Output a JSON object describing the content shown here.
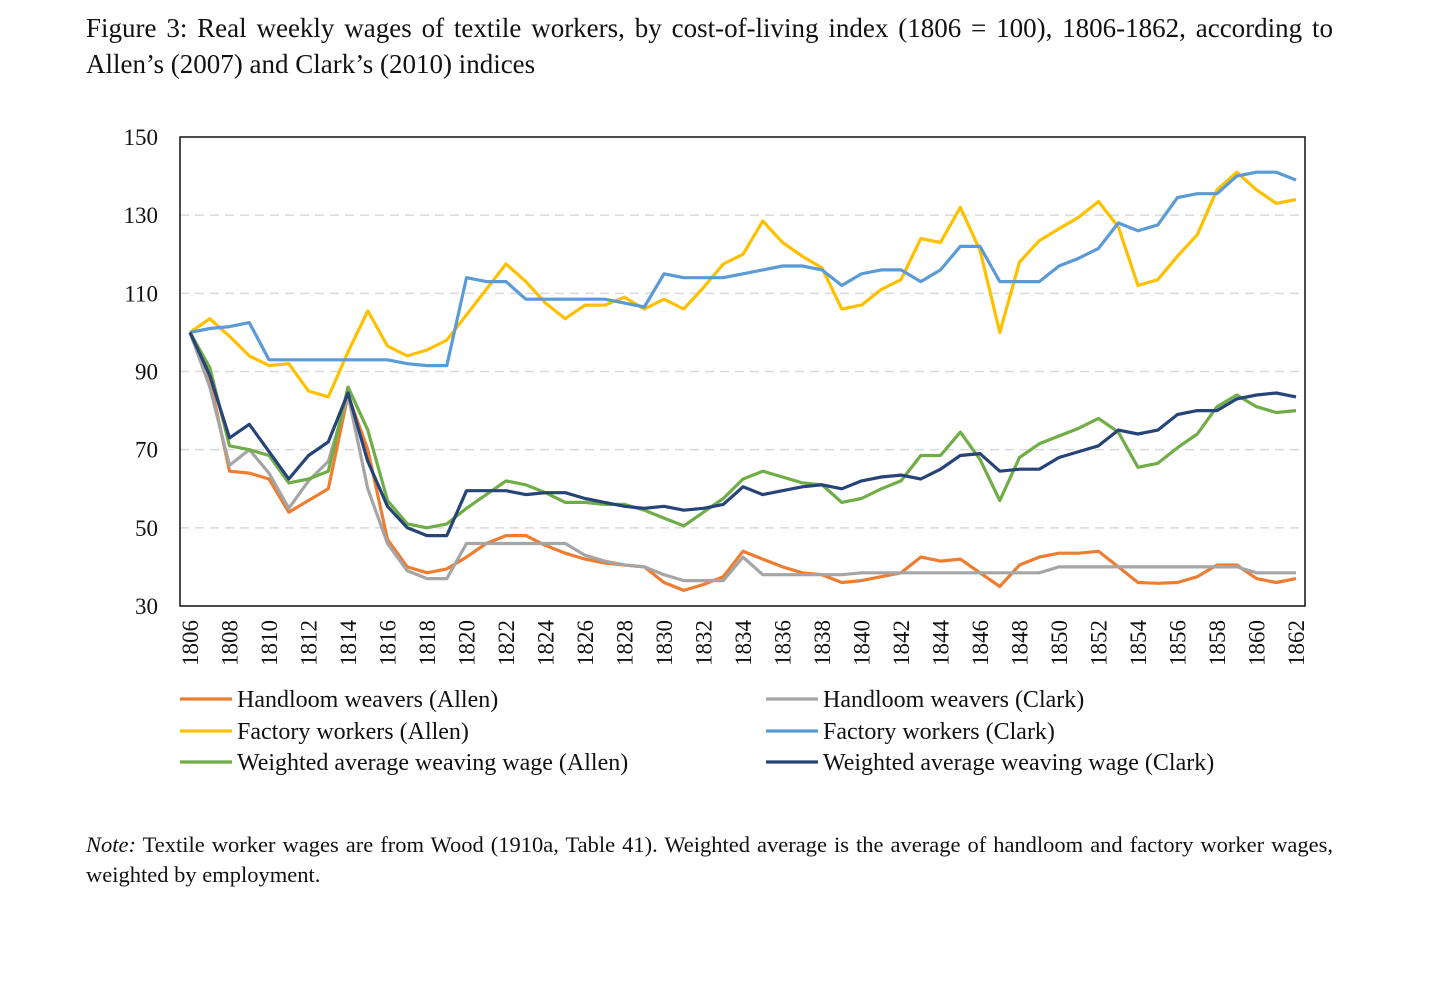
{
  "title": "Figure 3: Real weekly wages of textile workers, by cost-of-living index (1806 = 100), 1806-1862, according to Allen’s (2007) and Clark’s (2010) indices",
  "note": {
    "label": "Note:",
    "text": "Textile worker wages are from Wood (1910a, Table 41). Weighted average is the average of handloom and factory worker wages, weighted by employment."
  },
  "chart_data": {
    "type": "line",
    "title": "Figure 3: Real weekly wages of textile workers, by cost-of-living index (1806 = 100), 1806-1862, according to Allen’s (2007) and Clark’s (2010) indices",
    "xlabel": "",
    "ylabel": "",
    "xlim": [
      1806,
      1862
    ],
    "ylim": [
      30,
      150
    ],
    "yticks": [
      150,
      130,
      110,
      90,
      70,
      50,
      30
    ],
    "xticks": [
      1806,
      1808,
      1810,
      1812,
      1814,
      1816,
      1818,
      1820,
      1822,
      1824,
      1826,
      1828,
      1830,
      1832,
      1834,
      1836,
      1838,
      1840,
      1842,
      1844,
      1846,
      1848,
      1850,
      1852,
      1854,
      1856,
      1858,
      1860,
      1862
    ],
    "grid": "horizontal dashed",
    "legend_placement": "bottom",
    "x_start": 1806,
    "series": [
      {
        "name": "Handloom weavers (Allen)",
        "color": "#ED7D31",
        "values": [
          100,
          88,
          64.5,
          64,
          62.5,
          54,
          57,
          60,
          84,
          70,
          47,
          40,
          38.5,
          39.5,
          42.5,
          46,
          48,
          48,
          45.5,
          43.5,
          42,
          41,
          40.5,
          40,
          36,
          34,
          35.5,
          37.5,
          44,
          42,
          40,
          38.5,
          38,
          36,
          36.5,
          37.5,
          38.5,
          42.5,
          41.5,
          42,
          38.5,
          35,
          40.5,
          42.5,
          43.5,
          43.5,
          44,
          40,
          36,
          35.8,
          36,
          37.5,
          40.5,
          40.5,
          37,
          36,
          37
        ]
      },
      {
        "name": "Handloom weavers (Clark)",
        "color": "#A5A5A5",
        "values": [
          100,
          86,
          66,
          70,
          64,
          55,
          62,
          67,
          84,
          60,
          46,
          39,
          37,
          37,
          46,
          46,
          46,
          46,
          46,
          46,
          43,
          41.5,
          40.5,
          40,
          38,
          36.5,
          36.5,
          36.5,
          42.5,
          38,
          38,
          38,
          38,
          38,
          38.5,
          38.5,
          38.5,
          38.5,
          38.5,
          38.5,
          38.5,
          38.5,
          38.5,
          38.5,
          40,
          40,
          40,
          40,
          40,
          40,
          40,
          40,
          40,
          40,
          38.5,
          38.5,
          38.5
        ]
      },
      {
        "name": "Factory workers (Allen)",
        "color": "#FFC000",
        "values": [
          100,
          103.5,
          99,
          94,
          91.5,
          92,
          85,
          83.5,
          95,
          105.5,
          96.5,
          94,
          95.5,
          98,
          104.5,
          111,
          117.5,
          113,
          107.5,
          103.5,
          107,
          107,
          109,
          106,
          108.5,
          106,
          111.5,
          117.5,
          120,
          128.5,
          123,
          119.5,
          116.5,
          106,
          107,
          111,
          113.5,
          124,
          123,
          132,
          121,
          100,
          118,
          123.5,
          126.5,
          129.5,
          133.5,
          127,
          112,
          113.5,
          119.5,
          125,
          136.5,
          141,
          136.5,
          133,
          134
        ]
      },
      {
        "name": "Factory workers (Clark)",
        "color": "#5B9BD5",
        "values": [
          100,
          101,
          101.5,
          102.5,
          93,
          93,
          93,
          93,
          93,
          93,
          93,
          92,
          91.5,
          91.5,
          114,
          113,
          113,
          108.5,
          108.5,
          108.5,
          108.5,
          108.5,
          107.5,
          106.5,
          115,
          114,
          114,
          114,
          115,
          116,
          117,
          117,
          116,
          112,
          115,
          116,
          116,
          113,
          116,
          122,
          122,
          113,
          113,
          113,
          117,
          119,
          121.5,
          128,
          126,
          127.5,
          134.5,
          135.5,
          135.5,
          140,
          141,
          141,
          139
        ]
      },
      {
        "name": "Weighted average weaving wage (Allen)",
        "color": "#70AD47",
        "values": [
          100,
          91,
          71,
          70,
          68.5,
          61.5,
          62.5,
          64.5,
          86,
          75,
          57,
          51,
          50,
          51,
          55,
          58.5,
          62,
          61,
          59,
          56.5,
          56.5,
          56,
          56,
          54.5,
          52.5,
          50.5,
          54,
          57.5,
          62.5,
          64.5,
          63,
          61.5,
          61,
          56.5,
          57.5,
          60,
          62,
          68.5,
          68.5,
          74.5,
          67.5,
          57,
          68,
          71.5,
          73.5,
          75.5,
          78,
          74.5,
          65.5,
          66.5,
          70.5,
          74,
          81,
          84,
          81,
          79.5,
          80
        ]
      },
      {
        "name": "Weighted average weaving wage (Clark)",
        "color": "#264478",
        "values": [
          100,
          89,
          73,
          76.5,
          69.5,
          62.5,
          68.5,
          72,
          84.5,
          67,
          55.5,
          50,
          48,
          48,
          59.5,
          59.5,
          59.5,
          58.5,
          59,
          59,
          57.5,
          56.5,
          55.5,
          55,
          55.5,
          54.5,
          55,
          56,
          60.5,
          58.5,
          59.5,
          60.5,
          61,
          60,
          62,
          63,
          63.5,
          62.5,
          65,
          68.5,
          69,
          64.5,
          65,
          65,
          68,
          69.5,
          71,
          75,
          74,
          75,
          79,
          80,
          80,
          83,
          84,
          84.5,
          83.5
        ]
      }
    ]
  }
}
